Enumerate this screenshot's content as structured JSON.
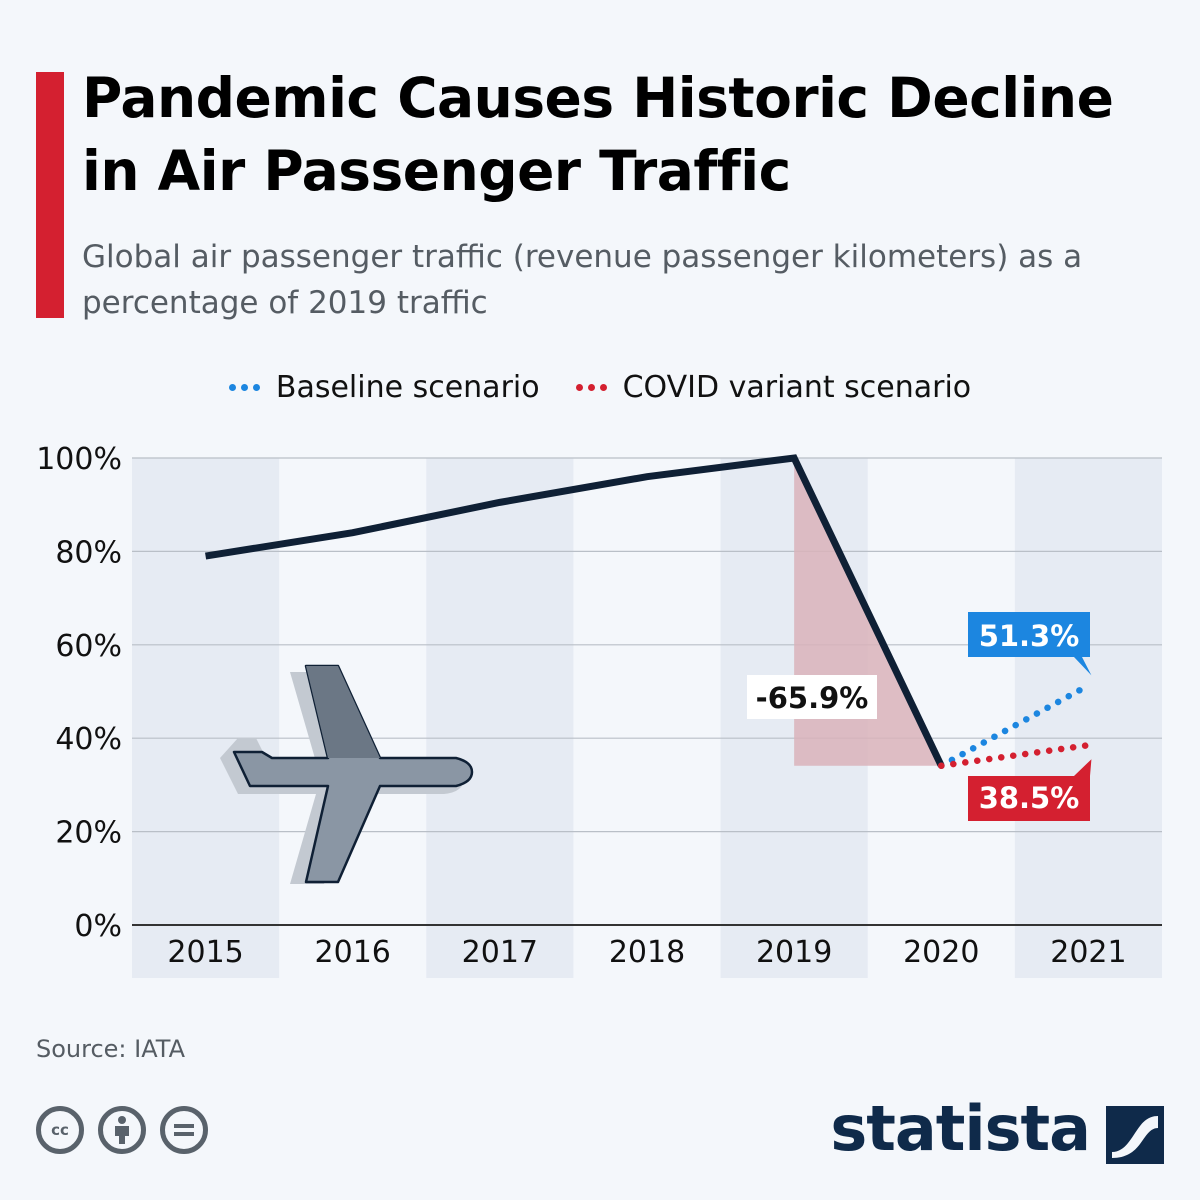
{
  "header": {
    "title": "Pandemic Causes Historic Decline in Air Passenger Traffic",
    "subtitle": "Global air passenger traffic (revenue passenger kilometers) as a percentage of 2019 traffic"
  },
  "legend": {
    "baseline": "Baseline scenario",
    "covid": "COVID variant scenario"
  },
  "colors": {
    "accent": "#d42030",
    "line": "#0f2035",
    "baseline": "#1c86e0",
    "covid": "#d42030",
    "drop_fill": "#d9b3ba"
  },
  "chart_data": {
    "type": "line",
    "categories": [
      "2015",
      "2016",
      "2017",
      "2018",
      "2019",
      "2020",
      "2021"
    ],
    "series": [
      {
        "values": [
          79,
          84,
          90.5,
          96,
          100,
          34.1,
          null
        ]
      },
      {
        "name": "Baseline scenario",
        "values": [
          null,
          null,
          null,
          null,
          null,
          34.1,
          51.3
        ]
      },
      {
        "name": "COVID variant scenario",
        "values": [
          null,
          null,
          null,
          null,
          null,
          34.1,
          38.5
        ]
      }
    ],
    "ylim": [
      0,
      100
    ],
    "yticks": [
      "0%",
      "20%",
      "40%",
      "60%",
      "80%",
      "100%"
    ],
    "ytick_values": [
      0,
      20,
      40,
      60,
      80,
      100
    ],
    "grid": true,
    "annotations": {
      "drop": "-65.9%",
      "baseline_end": "51.3%",
      "covid_end": "38.5%"
    }
  },
  "footer": {
    "source": "Source: IATA",
    "license_icons": [
      "cc-icon",
      "attribution-icon",
      "no-derivatives-icon"
    ],
    "brand": "statista"
  }
}
